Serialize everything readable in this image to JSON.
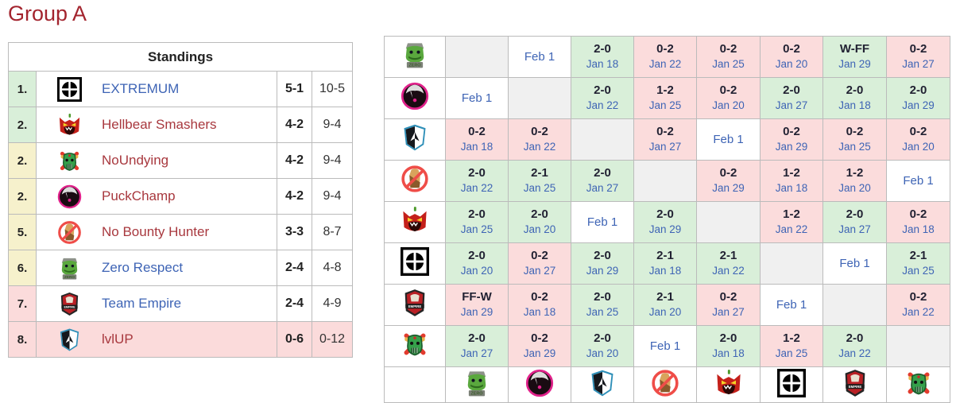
{
  "title": "Group A",
  "colors": {
    "title_red": "#a3242e",
    "link_blue": "#3e64b5",
    "link_red": "#a8383e",
    "win_green_bg": "#d9efd9",
    "loss_red_bg": "#fbdcdc",
    "upcoming_bg": "#ffffff",
    "diagonal_bg": "#f0f0f0",
    "rank_green_bg": "#d9efd9",
    "rank_yellow_bg": "#f6f1cc",
    "rank_pink_bg": "#fbdbdb",
    "table_border": "#bbbbbb",
    "score_text": "#222233"
  },
  "icons": {
    "extremum": "extremum-logo-icon",
    "hellbear-smashers": "hellbear-smashers-logo-icon",
    "noundying": "noundying-logo-icon",
    "puckchamp": "puckchamp-logo-icon",
    "no-bounty-hunter": "no-bounty-hunter-logo-icon",
    "zero-respect": "zero-respect-logo-icon",
    "team-empire": "team-empire-logo-icon",
    "lvlup": "lvlup-logo-icon"
  },
  "standings": {
    "header": "Standings",
    "rows": [
      {
        "rank": "1.",
        "zone": "green",
        "team_id": "extremum",
        "team": "EXTREMUM",
        "link_color": "blue",
        "match": "5-1",
        "games": "10-5",
        "row_highlight": false
      },
      {
        "rank": "2.",
        "zone": "green",
        "team_id": "hellbear-smashers",
        "team": "Hellbear Smashers",
        "link_color": "red",
        "match": "4-2",
        "games": "9-4",
        "row_highlight": false
      },
      {
        "rank": "2.",
        "zone": "yellow",
        "team_id": "noundying",
        "team": "NoUndying",
        "link_color": "red",
        "match": "4-2",
        "games": "9-4",
        "row_highlight": false
      },
      {
        "rank": "2.",
        "zone": "yellow",
        "team_id": "puckchamp",
        "team": "PuckChamp",
        "link_color": "red",
        "match": "4-2",
        "games": "9-4",
        "row_highlight": false
      },
      {
        "rank": "5.",
        "zone": "yellow",
        "team_id": "no-bounty-hunter",
        "team": "No Bounty Hunter",
        "link_color": "red",
        "match": "3-3",
        "games": "8-7",
        "row_highlight": false
      },
      {
        "rank": "6.",
        "zone": "yellow",
        "team_id": "zero-respect",
        "team": "Zero Respect",
        "link_color": "blue",
        "match": "2-4",
        "games": "4-8",
        "row_highlight": false
      },
      {
        "rank": "7.",
        "zone": "pink",
        "team_id": "team-empire",
        "team": "Team Empire",
        "link_color": "blue",
        "match": "2-4",
        "games": "4-9",
        "row_highlight": false
      },
      {
        "rank": "8.",
        "zone": "pink",
        "team_id": "lvlup",
        "team": "lvlUP",
        "link_color": "red",
        "match": "0-6",
        "games": "0-12",
        "row_highlight": true
      }
    ]
  },
  "crosstable": {
    "team_order": [
      "zero-respect",
      "puckchamp",
      "lvlup",
      "no-bounty-hunter",
      "hellbear-smashers",
      "extremum",
      "team-empire",
      "noundying"
    ],
    "rows": [
      {
        "team_id": "zero-respect",
        "cells": [
          {
            "type": "diagonal"
          },
          {
            "type": "upcoming",
            "date": "Feb 1"
          },
          {
            "type": "win",
            "score": "2-0",
            "date": "Jan 18"
          },
          {
            "type": "loss",
            "score": "0-2",
            "date": "Jan 22"
          },
          {
            "type": "loss",
            "score": "0-2",
            "date": "Jan 25"
          },
          {
            "type": "loss",
            "score": "0-2",
            "date": "Jan 20"
          },
          {
            "type": "win",
            "score": "W-FF",
            "date": "Jan 29"
          },
          {
            "type": "loss",
            "score": "0-2",
            "date": "Jan 27"
          }
        ]
      },
      {
        "team_id": "puckchamp",
        "cells": [
          {
            "type": "upcoming",
            "date": "Feb 1"
          },
          {
            "type": "diagonal"
          },
          {
            "type": "win",
            "score": "2-0",
            "date": "Jan 22"
          },
          {
            "type": "loss",
            "score": "1-2",
            "date": "Jan 25"
          },
          {
            "type": "loss",
            "score": "0-2",
            "date": "Jan 20"
          },
          {
            "type": "win",
            "score": "2-0",
            "date": "Jan 27"
          },
          {
            "type": "win",
            "score": "2-0",
            "date": "Jan 18"
          },
          {
            "type": "win",
            "score": "2-0",
            "date": "Jan 29"
          }
        ]
      },
      {
        "team_id": "lvlup",
        "cells": [
          {
            "type": "loss",
            "score": "0-2",
            "date": "Jan 18"
          },
          {
            "type": "loss",
            "score": "0-2",
            "date": "Jan 22"
          },
          {
            "type": "diagonal"
          },
          {
            "type": "loss",
            "score": "0-2",
            "date": "Jan 27"
          },
          {
            "type": "upcoming",
            "date": "Feb 1"
          },
          {
            "type": "loss",
            "score": "0-2",
            "date": "Jan 29"
          },
          {
            "type": "loss",
            "score": "0-2",
            "date": "Jan 25"
          },
          {
            "type": "loss",
            "score": "0-2",
            "date": "Jan 20"
          }
        ]
      },
      {
        "team_id": "no-bounty-hunter",
        "cells": [
          {
            "type": "win",
            "score": "2-0",
            "date": "Jan 22"
          },
          {
            "type": "win",
            "score": "2-1",
            "date": "Jan 25"
          },
          {
            "type": "win",
            "score": "2-0",
            "date": "Jan 27"
          },
          {
            "type": "diagonal"
          },
          {
            "type": "loss",
            "score": "0-2",
            "date": "Jan 29"
          },
          {
            "type": "loss",
            "score": "1-2",
            "date": "Jan 18"
          },
          {
            "type": "loss",
            "score": "1-2",
            "date": "Jan 20"
          },
          {
            "type": "upcoming",
            "date": "Feb 1"
          }
        ]
      },
      {
        "team_id": "hellbear-smashers",
        "cells": [
          {
            "type": "win",
            "score": "2-0",
            "date": "Jan 25"
          },
          {
            "type": "win",
            "score": "2-0",
            "date": "Jan 20"
          },
          {
            "type": "upcoming",
            "date": "Feb 1"
          },
          {
            "type": "win",
            "score": "2-0",
            "date": "Jan 29"
          },
          {
            "type": "diagonal"
          },
          {
            "type": "loss",
            "score": "1-2",
            "date": "Jan 22"
          },
          {
            "type": "win",
            "score": "2-0",
            "date": "Jan 27"
          },
          {
            "type": "loss",
            "score": "0-2",
            "date": "Jan 18"
          }
        ]
      },
      {
        "team_id": "extremum",
        "cells": [
          {
            "type": "win",
            "score": "2-0",
            "date": "Jan 20"
          },
          {
            "type": "loss",
            "score": "0-2",
            "date": "Jan 27"
          },
          {
            "type": "win",
            "score": "2-0",
            "date": "Jan 29"
          },
          {
            "type": "win",
            "score": "2-1",
            "date": "Jan 18"
          },
          {
            "type": "win",
            "score": "2-1",
            "date": "Jan 22"
          },
          {
            "type": "diagonal"
          },
          {
            "type": "upcoming",
            "date": "Feb 1"
          },
          {
            "type": "win",
            "score": "2-1",
            "date": "Jan 25"
          }
        ]
      },
      {
        "team_id": "team-empire",
        "cells": [
          {
            "type": "loss",
            "score": "FF-W",
            "date": "Jan 29"
          },
          {
            "type": "loss",
            "score": "0-2",
            "date": "Jan 18"
          },
          {
            "type": "win",
            "score": "2-0",
            "date": "Jan 25"
          },
          {
            "type": "win",
            "score": "2-1",
            "date": "Jan 20"
          },
          {
            "type": "loss",
            "score": "0-2",
            "date": "Jan 27"
          },
          {
            "type": "upcoming",
            "date": "Feb 1"
          },
          {
            "type": "diagonal"
          },
          {
            "type": "loss",
            "score": "0-2",
            "date": "Jan 22"
          }
        ]
      },
      {
        "team_id": "noundying",
        "cells": [
          {
            "type": "win",
            "score": "2-0",
            "date": "Jan 27"
          },
          {
            "type": "loss",
            "score": "0-2",
            "date": "Jan 29"
          },
          {
            "type": "win",
            "score": "2-0",
            "date": "Jan 20"
          },
          {
            "type": "upcoming",
            "date": "Feb 1"
          },
          {
            "type": "win",
            "score": "2-0",
            "date": "Jan 18"
          },
          {
            "type": "loss",
            "score": "1-2",
            "date": "Jan 25"
          },
          {
            "type": "win",
            "score": "2-0",
            "date": "Jan 22"
          },
          {
            "type": "diagonal"
          }
        ]
      }
    ],
    "footer_team_order": [
      "zero-respect",
      "puckchamp",
      "lvlup",
      "no-bounty-hunter",
      "hellbear-smashers",
      "extremum",
      "team-empire",
      "noundying"
    ]
  }
}
